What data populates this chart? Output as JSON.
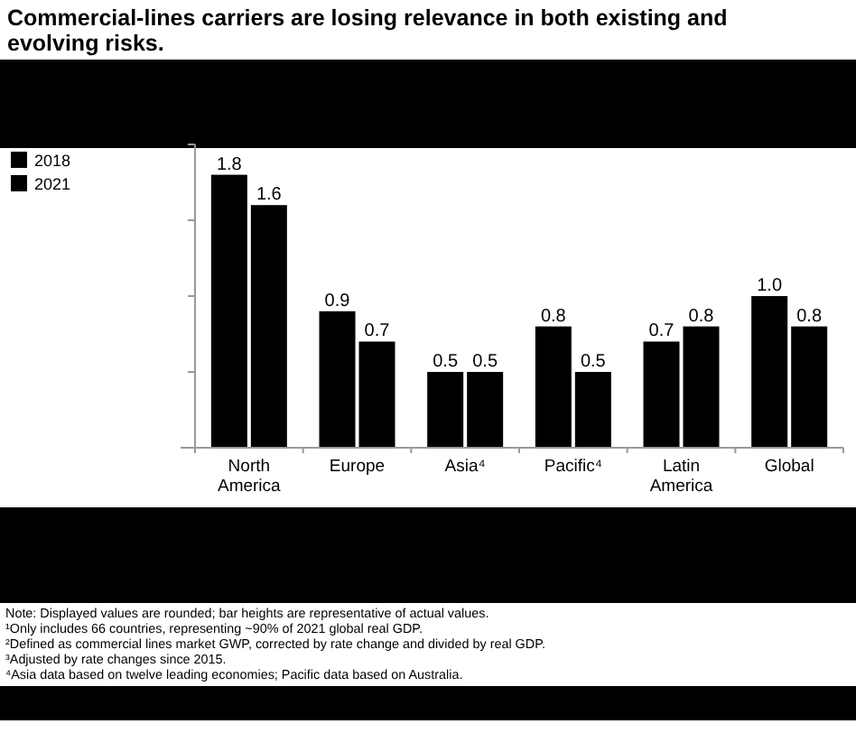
{
  "chart_data": {
    "type": "bar",
    "title": "Commercial-lines carriers are losing relevance in both existing and evolving risks.",
    "categories": [
      "North America",
      "Europe",
      "Asia⁴",
      "Pacific⁴",
      "Latin America",
      "Global"
    ],
    "series": [
      {
        "name": "2018",
        "color": "#000000",
        "values": [
          1.8,
          0.9,
          0.5,
          0.8,
          0.7,
          1.0
        ],
        "value_labels": [
          "1.8",
          "0.9",
          "0.5",
          "0.8",
          "0.7",
          "1.0"
        ]
      },
      {
        "name": "2021",
        "color": "#000000",
        "values": [
          1.6,
          0.7,
          0.5,
          0.5,
          0.8,
          0.8
        ],
        "value_labels": [
          "1.6",
          "0.7",
          "0.5",
          "0.5",
          "0.8",
          "0.8"
        ]
      }
    ],
    "ylim": [
      0,
      2
    ],
    "yticks": [
      {
        "value": 0.5,
        "label": null
      },
      {
        "value": 1,
        "label": null
      },
      {
        "value": 1.5,
        "label": null
      },
      {
        "value": 2,
        "label": null
      }
    ],
    "tick_labels": "x",
    "legend": "top left",
    "grid": false,
    "annotations": [
      "Note: Displayed values are rounded; bar heights are representative of actual values.",
      "¹Only includes 66 countries, representing ~90% of 2021 global real GDP.",
      "²Defined as commercial lines market GWP, corrected by rate change and divided by real GDP.",
      "³Adjusted by rate changes since 2015.",
      "⁴Asia data based on twelve leading economies; Pacific data based on Australia."
    ]
  }
}
